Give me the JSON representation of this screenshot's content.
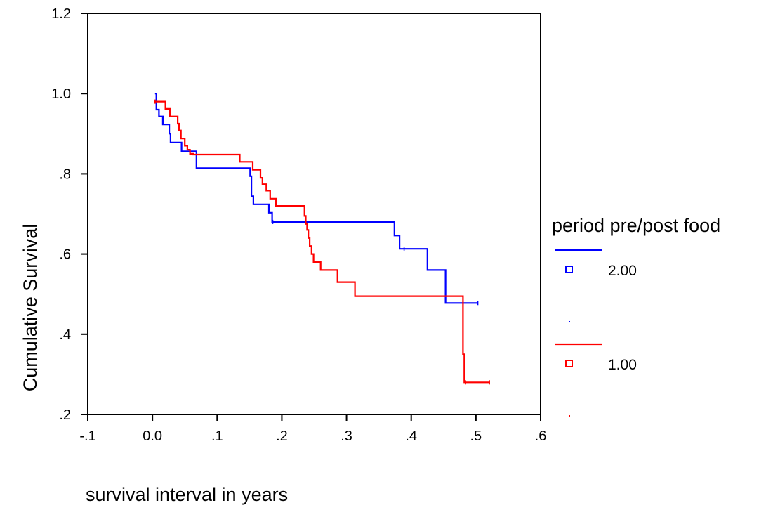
{
  "chart_data": {
    "type": "line",
    "step": true,
    "xlabel": "survival  interval in years",
    "ylabel": "Cumulative Survival",
    "xlim": [
      -0.1,
      0.6
    ],
    "ylim": [
      0.2,
      1.2
    ],
    "x_ticks": [
      {
        "value": -0.1,
        "label": "-.1"
      },
      {
        "value": 0.0,
        "label": "0.0"
      },
      {
        "value": 0.1,
        "label": ".1"
      },
      {
        "value": 0.2,
        "label": ".2"
      },
      {
        "value": 0.3,
        "label": ".3"
      },
      {
        "value": 0.4,
        "label": ".4"
      },
      {
        "value": 0.5,
        "label": ".5"
      },
      {
        "value": 0.6,
        "label": ".6"
      }
    ],
    "y_ticks": [
      {
        "value": 0.2,
        "label": ".2"
      },
      {
        "value": 0.4,
        "label": ".4"
      },
      {
        "value": 0.6,
        "label": ".6"
      },
      {
        "value": 0.8,
        "label": ".8"
      },
      {
        "value": 1.0,
        "label": "1.0"
      },
      {
        "value": 1.2,
        "label": "1.2"
      }
    ],
    "grid": false,
    "legend": {
      "title": "period pre/post food",
      "placement": "right",
      "entries": [
        {
          "label": "2.00",
          "color": "#0000ff"
        },
        {
          "label": "1.00",
          "color": "#ff0000"
        }
      ]
    },
    "series": [
      {
        "name": "2.00",
        "color": "#0000ff",
        "x": [
          0.004,
          0.006,
          0.01,
          0.016,
          0.026,
          0.028,
          0.045,
          0.068,
          0.068,
          0.151,
          0.153,
          0.156,
          0.18,
          0.185,
          0.186,
          0.374,
          0.382,
          0.389,
          0.425,
          0.453,
          0.503
        ],
        "y": [
          1.0,
          0.96,
          0.943,
          0.923,
          0.9,
          0.878,
          0.856,
          0.835,
          0.814,
          0.794,
          0.744,
          0.724,
          0.703,
          0.68,
          0.68,
          0.646,
          0.613,
          0.613,
          0.56,
          0.478,
          0.478
        ]
      },
      {
        "name": "1.00",
        "color": "#ff0000",
        "x": [
          0.003,
          0.004,
          0.02,
          0.027,
          0.039,
          0.041,
          0.044,
          0.05,
          0.054,
          0.058,
          0.063,
          0.135,
          0.155,
          0.167,
          0.17,
          0.176,
          0.182,
          0.191,
          0.235,
          0.237,
          0.239,
          0.241,
          0.243,
          0.246,
          0.249,
          0.26,
          0.286,
          0.313,
          0.48,
          0.482,
          0.484,
          0.521
        ],
        "y": [
          0.98,
          0.98,
          0.962,
          0.943,
          0.925,
          0.908,
          0.888,
          0.87,
          0.86,
          0.85,
          0.848,
          0.83,
          0.81,
          0.79,
          0.774,
          0.758,
          0.738,
          0.72,
          0.695,
          0.675,
          0.66,
          0.64,
          0.62,
          0.6,
          0.58,
          0.56,
          0.53,
          0.495,
          0.35,
          0.28,
          0.28,
          0.28
        ]
      }
    ]
  }
}
